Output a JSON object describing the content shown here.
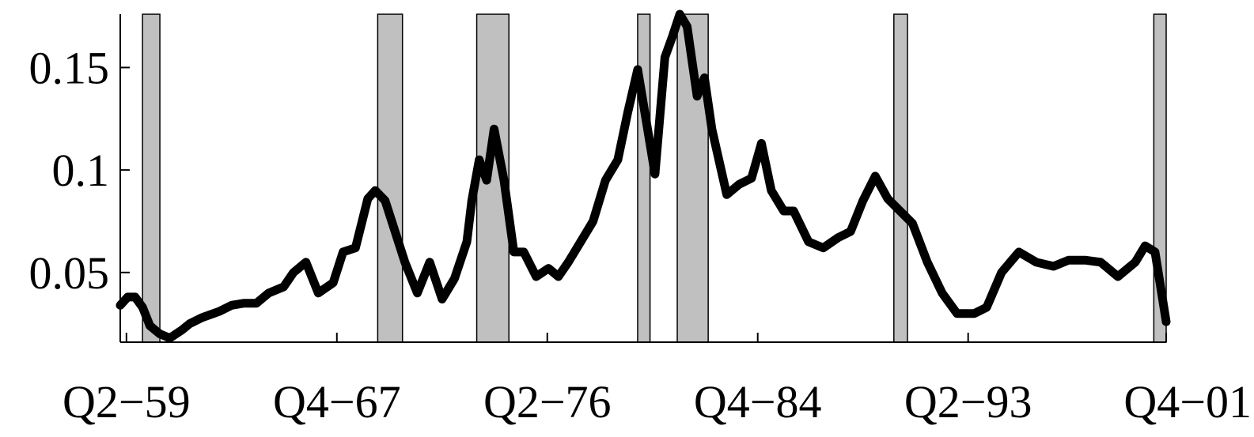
{
  "chart_data": {
    "type": "line",
    "title": "",
    "xlabel": "",
    "ylabel": "",
    "x_tick_labels": [
      "Q2−59",
      "Q4−67",
      "Q2−76",
      "Q4−84",
      "Q2−93",
      "Q4−01"
    ],
    "x_ticks": [
      1959.25,
      1967.75,
      1976.25,
      1984.75,
      1993.25,
      2001.75
    ],
    "xlim": [
      1959.0,
      2001.25
    ],
    "y_ticks": [
      0.05,
      0.1,
      0.15
    ],
    "y_tick_labels": [
      "0.05",
      "0.1",
      "0.15"
    ],
    "ylim": [
      0.016,
      0.176
    ],
    "recessions": [
      [
        1959.9,
        1960.6
      ],
      [
        1969.4,
        1970.4
      ],
      [
        1973.4,
        1974.7
      ],
      [
        1979.9,
        1980.4
      ],
      [
        1981.5,
        1982.75
      ],
      [
        1990.25,
        1990.8
      ],
      [
        2000.75,
        2001.25
      ]
    ],
    "series": [
      {
        "x": [
          1959.0,
          1959.3,
          1959.6,
          1959.9,
          1960.2,
          1960.6,
          1961.0,
          1961.5,
          1961.8,
          1962.3,
          1963.0,
          1963.5,
          1964.0,
          1964.5,
          1965.0,
          1965.6,
          1966.0,
          1966.5,
          1967.0,
          1967.6,
          1968.0,
          1968.5,
          1969.0,
          1969.3,
          1969.7,
          1970.1,
          1970.5,
          1971.0,
          1971.5,
          1972.0,
          1972.5,
          1973.0,
          1973.2,
          1973.5,
          1973.8,
          1974.1,
          1974.5,
          1974.9,
          1975.3,
          1975.8,
          1976.3,
          1976.7,
          1977.1,
          1977.6,
          1978.1,
          1978.6,
          1979.1,
          1979.5,
          1979.9,
          1980.3,
          1980.6,
          1981.0,
          1981.3,
          1981.6,
          1981.9,
          1982.3,
          1982.6,
          1982.9,
          1983.5,
          1984.0,
          1984.5,
          1984.9,
          1985.3,
          1985.8,
          1986.2,
          1986.8,
          1987.4,
          1988.0,
          1988.5,
          1989.0,
          1989.5,
          1990.0,
          1990.5,
          1991.0,
          1991.6,
          1992.2,
          1992.8,
          1993.5,
          1994.0,
          1994.6,
          1995.3,
          1996.0,
          1996.7,
          1997.3,
          1998.0,
          1998.6,
          1999.3,
          2000.0,
          2000.4,
          2000.8,
          2001.25
        ],
        "y": [
          0.034,
          0.038,
          0.038,
          0.033,
          0.024,
          0.02,
          0.018,
          0.022,
          0.025,
          0.028,
          0.031,
          0.034,
          0.035,
          0.035,
          0.04,
          0.043,
          0.05,
          0.055,
          0.04,
          0.045,
          0.06,
          0.062,
          0.086,
          0.09,
          0.085,
          0.07,
          0.055,
          0.04,
          0.055,
          0.037,
          0.047,
          0.065,
          0.085,
          0.105,
          0.095,
          0.12,
          0.095,
          0.06,
          0.06,
          0.048,
          0.052,
          0.048,
          0.055,
          0.065,
          0.075,
          0.095,
          0.105,
          0.128,
          0.149,
          0.12,
          0.098,
          0.155,
          0.165,
          0.176,
          0.17,
          0.136,
          0.145,
          0.12,
          0.088,
          0.093,
          0.096,
          0.113,
          0.09,
          0.08,
          0.08,
          0.065,
          0.062,
          0.067,
          0.07,
          0.085,
          0.097,
          0.086,
          0.08,
          0.074,
          0.055,
          0.04,
          0.03,
          0.03,
          0.033,
          0.05,
          0.06,
          0.055,
          0.053,
          0.056,
          0.056,
          0.055,
          0.048,
          0.055,
          0.063,
          0.06,
          0.026
        ]
      }
    ]
  }
}
